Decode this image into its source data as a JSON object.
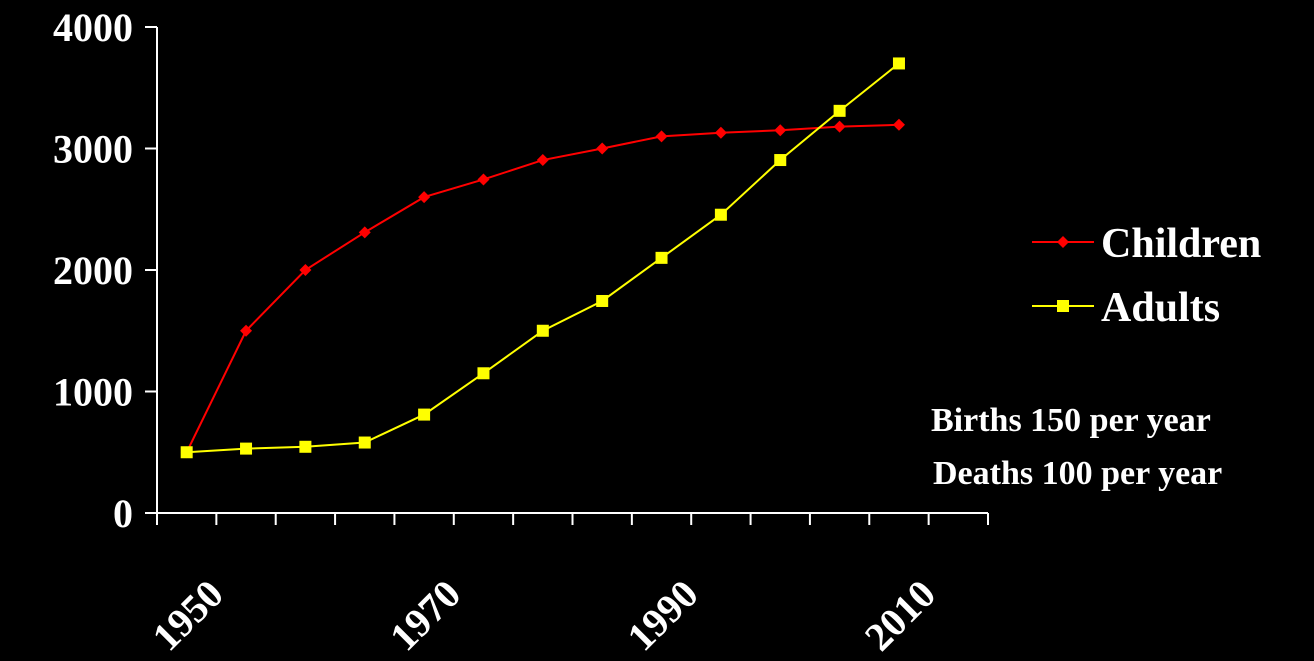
{
  "chart_data": {
    "type": "line",
    "x": [
      1952,
      1957,
      1962,
      1967,
      1972,
      1977,
      1982,
      1987,
      1992,
      1997,
      2002,
      2007,
      2012
    ],
    "series": [
      {
        "name": "Children",
        "color": "#ff0000",
        "marker": "diamond",
        "values": [
          500,
          1500,
          2000,
          2310,
          2600,
          2745,
          2905,
          3000,
          3100,
          3130,
          3150,
          3180,
          3195
        ]
      },
      {
        "name": "Adults",
        "color": "#ffff00",
        "marker": "square",
        "values": [
          500,
          530,
          545,
          580,
          810,
          1150,
          1500,
          1745,
          2100,
          2455,
          2905,
          3310,
          3700
        ]
      }
    ],
    "x_tick_labels": [
      "1950",
      "1970",
      "1990",
      "2010"
    ],
    "x_tick_label_values": [
      1950,
      1970,
      1990,
      2010
    ],
    "ylim": [
      0,
      4000
    ],
    "y_ticks": [
      0,
      1000,
      2000,
      3000,
      4000
    ],
    "xlim": [
      1949.5,
      2019.5
    ],
    "grid": false,
    "legend_position": "right",
    "annotations": [
      "Births 150 per year",
      "Deaths 100 per year"
    ]
  }
}
